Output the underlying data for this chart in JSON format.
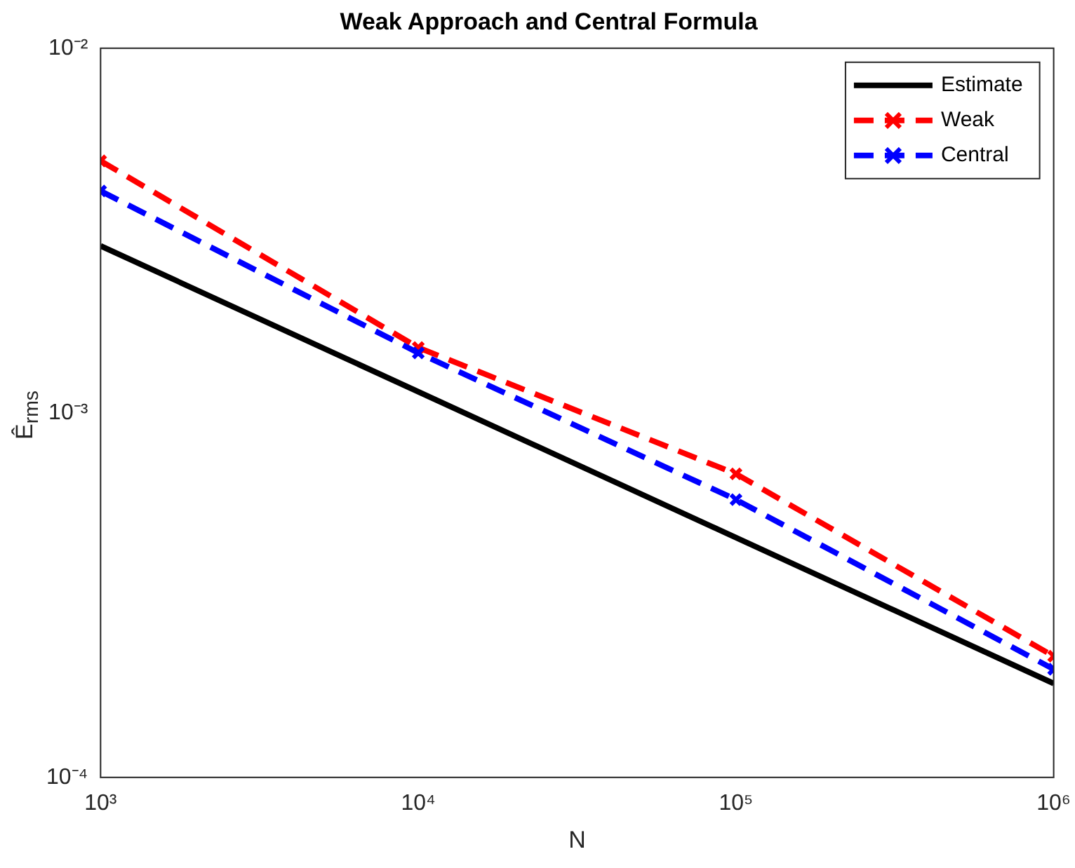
{
  "chart_data": {
    "type": "line",
    "title": "Weak Approach and Central Formula",
    "xlabel": "N",
    "ylabel": "Ê$_{rms}$",
    "log": "xy",
    "grid": false,
    "legend": "top right",
    "x": [
      1000,
      10000,
      100000,
      1000000
    ],
    "xlim": [
      1000,
      1000000
    ],
    "ylim": [
      0.0001,
      0.01
    ],
    "xticks": [
      {
        "value": 1000,
        "label": "10³"
      },
      {
        "value": 10000,
        "label": "10⁴"
      },
      {
        "value": 100000,
        "label": "10⁵"
      },
      {
        "value": 1000000,
        "label": "10⁶"
      }
    ],
    "yticks": [
      {
        "value": 0.0001,
        "label": "10⁻⁴"
      },
      {
        "value": 0.001,
        "label": "10⁻³"
      },
      {
        "value": 0.01,
        "label": "10⁻²"
      }
    ],
    "series": [
      {
        "name": "Estimate",
        "color": "#000000",
        "x": [
          1000,
          1000000
        ],
        "values": [
          0.00287,
          0.000181
        ],
        "line_style": "solid",
        "marker": "none"
      },
      {
        "name": "Weak",
        "color": "#ff0000",
        "values": [
          0.00491,
          0.00151,
          0.00068,
          0.000215
        ],
        "line_style": "dashed",
        "marker": "cross"
      },
      {
        "name": "Central",
        "color": "#0000ff",
        "values": [
          0.00406,
          0.00146,
          0.000578,
          0.000198
        ],
        "line_style": "dashed",
        "marker": "cross"
      }
    ]
  }
}
